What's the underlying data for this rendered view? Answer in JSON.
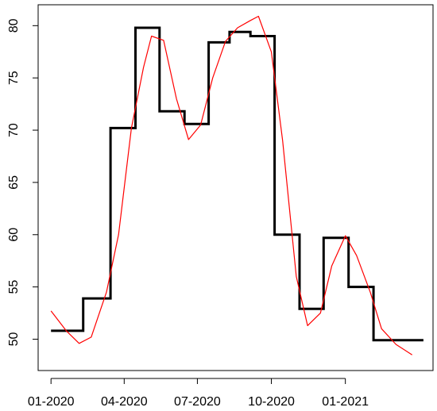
{
  "chart_data": {
    "type": "line",
    "title": "",
    "xlabel": "",
    "ylabel": "",
    "xlim": [
      "2019-12-16",
      "2021-04-20"
    ],
    "ylim": [
      47,
      82
    ],
    "x_ticks": [
      {
        "date": "2020-01-01",
        "label": "01-2020"
      },
      {
        "date": "2020-04-01",
        "label": "04-2020"
      },
      {
        "date": "2020-07-01",
        "label": "07-2020"
      },
      {
        "date": "2020-10-01",
        "label": "10-2020"
      },
      {
        "date": "2021-01-01",
        "label": "01-2021"
      }
    ],
    "y_ticks": [
      50,
      55,
      60,
      65,
      70,
      75,
      80
    ],
    "grid": false,
    "series": [
      {
        "style": "step",
        "color": "#000000",
        "points": [
          {
            "x": "2020-01-01",
            "y": 50.8
          },
          {
            "x": "2020-02-10",
            "y": 53.9
          },
          {
            "x": "2020-03-15",
            "y": 70.2
          },
          {
            "x": "2020-04-15",
            "y": 79.8
          },
          {
            "x": "2020-05-15",
            "y": 71.8
          },
          {
            "x": "2020-06-15",
            "y": 70.6
          },
          {
            "x": "2020-07-15",
            "y": 78.4
          },
          {
            "x": "2020-08-10",
            "y": 79.4
          },
          {
            "x": "2020-09-05",
            "y": 79.0
          },
          {
            "x": "2020-10-05",
            "y": 60.0
          },
          {
            "x": "2020-11-05",
            "y": 52.9
          },
          {
            "x": "2020-12-05",
            "y": 59.7
          },
          {
            "x": "2021-01-05",
            "y": 55.0
          },
          {
            "x": "2021-02-05",
            "y": 49.9
          },
          {
            "x": "2021-04-08",
            "y": 49.9
          }
        ]
      },
      {
        "style": "line",
        "color": "#ff0000",
        "points": [
          {
            "x": "2020-01-01",
            "y": 52.7
          },
          {
            "x": "2020-01-20",
            "y": 50.8
          },
          {
            "x": "2020-02-05",
            "y": 49.6
          },
          {
            "x": "2020-02-20",
            "y": 50.2
          },
          {
            "x": "2020-03-10",
            "y": 54.5
          },
          {
            "x": "2020-03-25",
            "y": 60.0
          },
          {
            "x": "2020-04-10",
            "y": 70.2
          },
          {
            "x": "2020-04-25",
            "y": 76.0
          },
          {
            "x": "2020-05-05",
            "y": 79.0
          },
          {
            "x": "2020-05-20",
            "y": 78.6
          },
          {
            "x": "2020-06-05",
            "y": 73.0
          },
          {
            "x": "2020-06-20",
            "y": 69.1
          },
          {
            "x": "2020-07-05",
            "y": 70.5
          },
          {
            "x": "2020-07-20",
            "y": 75.0
          },
          {
            "x": "2020-08-05",
            "y": 78.5
          },
          {
            "x": "2020-08-20",
            "y": 79.8
          },
          {
            "x": "2020-09-05",
            "y": 80.5
          },
          {
            "x": "2020-09-15",
            "y": 80.9
          },
          {
            "x": "2020-10-01",
            "y": 77.5
          },
          {
            "x": "2020-10-15",
            "y": 69.0
          },
          {
            "x": "2020-11-01",
            "y": 56.0
          },
          {
            "x": "2020-11-15",
            "y": 51.3
          },
          {
            "x": "2020-12-01",
            "y": 52.5
          },
          {
            "x": "2020-12-15",
            "y": 57.0
          },
          {
            "x": "2021-01-01",
            "y": 59.9
          },
          {
            "x": "2021-01-15",
            "y": 58.0
          },
          {
            "x": "2021-02-01",
            "y": 54.5
          },
          {
            "x": "2021-02-15",
            "y": 51.0
          },
          {
            "x": "2021-03-05",
            "y": 49.5
          },
          {
            "x": "2021-03-25",
            "y": 48.5
          }
        ]
      }
    ]
  }
}
